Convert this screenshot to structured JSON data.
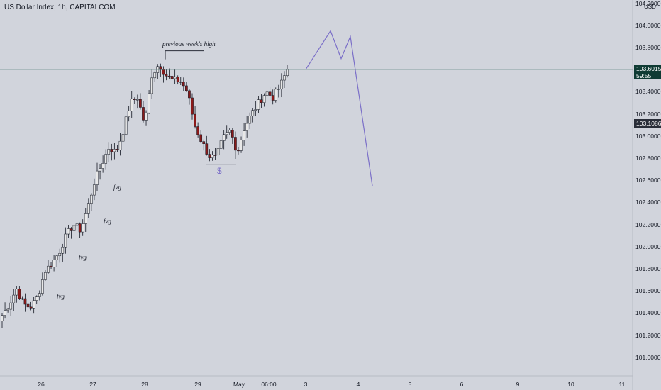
{
  "title": "US Dollar Index, 1h, CAPITALCOM",
  "currency": "USD",
  "colors": {
    "background": "#d1d4dc",
    "up": "#e8e8e8",
    "down": "#8b1a1a",
    "projection": "#7b6fc8",
    "price_line": "#6b8f8c",
    "price_badge": "#0f3b34",
    "last_badge": "#2a2e39",
    "level": "#2a2e39"
  },
  "price_badge": {
    "price": "103.6015",
    "countdown": "59:55"
  },
  "last_badge": {
    "price": "103.1086"
  },
  "annotations": {
    "level_label": "previous week's high",
    "dollar": "$",
    "fvg": [
      "fvg",
      "fvg",
      "fvg",
      "fvg"
    ]
  },
  "chart_data": {
    "type": "candlestick",
    "title": "US Dollar Index, 1h, CAPITALCOM",
    "ylim": [
      100.8,
      104.2
    ],
    "y_ticks": [
      "104.2000",
      "104.0000",
      "103.8000",
      "103.6000",
      "103.4000",
      "103.2000",
      "103.0000",
      "102.8000",
      "102.6000",
      "102.4000",
      "102.2000",
      "102.0000",
      "101.8000",
      "101.6000",
      "101.4000",
      "101.2000",
      "101.0000"
    ],
    "x_ticks": [
      "26",
      "27",
      "28",
      "29",
      "May",
      "06:00",
      "3",
      "4",
      "5",
      "6",
      "9",
      "10",
      "11"
    ],
    "last_price": 103.6015,
    "series_note": "hourly candles rising from ~101.4 to a high of ~103.7, pullback to ~102.9, recovery to 103.6",
    "anchors": [
      101.38,
      101.48,
      101.62,
      101.48,
      101.45,
      101.55,
      101.78,
      101.85,
      101.95,
      102.1,
      102.2,
      102.15,
      102.35,
      102.6,
      102.75,
      102.9,
      102.85,
      103.05,
      103.3,
      103.35,
      103.1,
      103.55,
      103.65,
      103.55,
      103.5,
      103.5,
      103.4,
      103.1,
      102.95,
      102.82,
      102.8,
      102.98,
      103.05,
      102.85,
      103.08,
      103.2,
      103.3,
      103.4,
      103.35,
      103.45,
      103.6
    ],
    "projection": [
      [
        103.6015
      ],
      [
        103.95
      ],
      [
        103.7
      ],
      [
        103.9
      ],
      [
        102.55
      ]
    ]
  }
}
